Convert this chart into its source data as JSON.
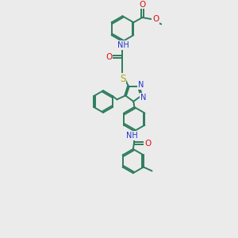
{
  "bg_color": "#ebebeb",
  "bond_color": "#2e7d5e",
  "N_color": "#2233cc",
  "O_color": "#dd1111",
  "S_color": "#aaaa00",
  "line_width": 1.4,
  "figsize": [
    3.0,
    3.0
  ],
  "dpi": 100,
  "xlim": [
    0,
    10
  ],
  "ylim": [
    0,
    13
  ]
}
